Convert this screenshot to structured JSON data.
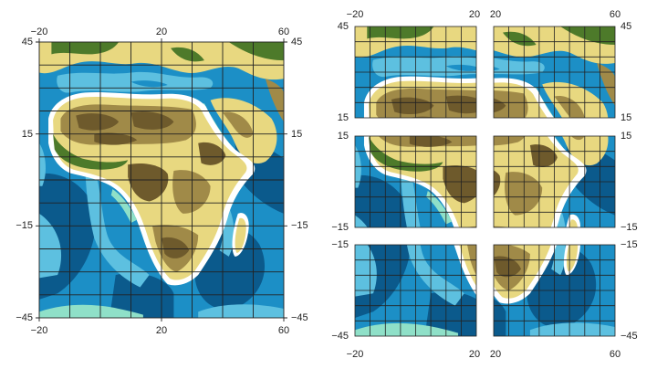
{
  "colors": {
    "deep_ocean": "#0b5a8c",
    "ocean": "#1c8fc6",
    "shallow_ocean": "#5dc0e0",
    "shelf": "#8fe0c8",
    "coast": "#ffffff",
    "lowland": "#4d7a2a",
    "plain": "#e8d880",
    "plateau": "#a08a48",
    "highland": "#6e5a2c",
    "grid": "#222222"
  },
  "main_map": {
    "top_labels": [
      "−20",
      "20",
      "60"
    ],
    "bottom_labels": [
      "−20",
      "20",
      "60"
    ],
    "left_labels": [
      "45",
      "15",
      "−15",
      "−45"
    ],
    "right_labels": [
      "45",
      "15",
      "−15",
      "−45"
    ]
  },
  "tiles": {
    "top_labels": [
      "−20",
      "20",
      "20",
      "60"
    ],
    "bottom_labels": [
      "−20",
      "20",
      "20",
      "60"
    ],
    "left_labels": [
      "45",
      "15",
      "15",
      "−15",
      "−15",
      "−45"
    ],
    "right_labels": [
      "45",
      "15",
      "15",
      "−15",
      "−15",
      "−45"
    ]
  }
}
